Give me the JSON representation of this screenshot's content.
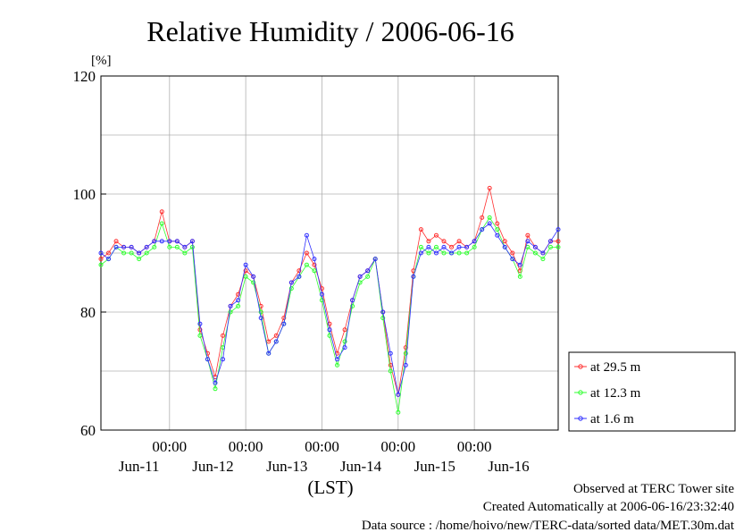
{
  "chart_data": {
    "type": "line",
    "title": "Relative Humidity / 2006-06-16",
    "ylabel": "[%]",
    "xlabel": "(LST)",
    "ylim": [
      60,
      120
    ],
    "yticks": [
      "60",
      "80",
      "100",
      "120"
    ],
    "grid": true,
    "legend": "right",
    "time_ticks": [
      "00:00",
      "00:00",
      "00:00",
      "00:00",
      "00:00"
    ],
    "day_labels": [
      "Jun-11",
      "Jun-12",
      "Jun-13",
      "Jun-14",
      "Jun-15",
      "Jun-16"
    ],
    "x_range_days": [
      0,
      6
    ],
    "series": [
      {
        "name": "at 29.5 m",
        "color": "#ff3030",
        "x": [
          0.0,
          0.1,
          0.2,
          0.3,
          0.4,
          0.5,
          0.6,
          0.7,
          0.8,
          0.9,
          1.0,
          1.1,
          1.2,
          1.3,
          1.4,
          1.5,
          1.6,
          1.7,
          1.8,
          1.9,
          2.0,
          2.1,
          2.2,
          2.3,
          2.4,
          2.5,
          2.6,
          2.7,
          2.8,
          2.9,
          3.0,
          3.1,
          3.2,
          3.3,
          3.4,
          3.5,
          3.6,
          3.7,
          3.8,
          3.9,
          4.0,
          4.1,
          4.2,
          4.3,
          4.4,
          4.5,
          4.6,
          4.7,
          4.8,
          4.9,
          5.0,
          5.1,
          5.2,
          5.3,
          5.4,
          5.5,
          5.6,
          5.7,
          5.8,
          5.9,
          6.0
        ],
        "values": [
          89,
          90,
          92,
          91,
          91,
          90,
          91,
          92,
          97,
          92,
          92,
          91,
          92,
          77,
          73,
          69,
          76,
          81,
          83,
          87,
          86,
          81,
          75,
          76,
          79,
          85,
          87,
          90,
          88,
          84,
          78,
          73,
          77,
          82,
          86,
          87,
          89,
          80,
          71,
          66,
          74,
          87,
          94,
          92,
          93,
          92,
          91,
          92,
          91,
          92,
          96,
          101,
          95,
          92,
          90,
          87,
          93,
          91,
          90,
          92,
          92
        ]
      },
      {
        "name": "at 12.3 m",
        "color": "#30ff30",
        "x": [
          0.0,
          0.1,
          0.2,
          0.3,
          0.4,
          0.5,
          0.6,
          0.7,
          0.8,
          0.9,
          1.0,
          1.1,
          1.2,
          1.3,
          1.4,
          1.5,
          1.6,
          1.7,
          1.8,
          1.9,
          2.0,
          2.1,
          2.2,
          2.3,
          2.4,
          2.5,
          2.6,
          2.7,
          2.8,
          2.9,
          3.0,
          3.1,
          3.2,
          3.3,
          3.4,
          3.5,
          3.6,
          3.7,
          3.8,
          3.9,
          4.0,
          4.1,
          4.2,
          4.3,
          4.4,
          4.5,
          4.6,
          4.7,
          4.8,
          4.9,
          5.0,
          5.1,
          5.2,
          5.3,
          5.4,
          5.5,
          5.6,
          5.7,
          5.8,
          5.9,
          6.0
        ],
        "values": [
          88,
          89,
          91,
          90,
          90,
          89,
          90,
          91,
          95,
          91,
          91,
          90,
          91,
          76,
          72,
          67,
          74,
          80,
          81,
          86,
          85,
          80,
          73,
          75,
          78,
          84,
          86,
          88,
          87,
          82,
          76,
          71,
          75,
          81,
          85,
          86,
          89,
          79,
          70,
          63,
          73,
          86,
          91,
          90,
          91,
          90,
          90,
          90,
          90,
          91,
          94,
          96,
          94,
          91,
          89,
          86,
          91,
          90,
          89,
          91,
          91
        ]
      },
      {
        "name": "at 1.6 m",
        "color": "#3030ff",
        "x": [
          0.0,
          0.1,
          0.2,
          0.3,
          0.4,
          0.5,
          0.6,
          0.7,
          0.8,
          0.9,
          1.0,
          1.1,
          1.2,
          1.3,
          1.4,
          1.5,
          1.6,
          1.7,
          1.8,
          1.9,
          2.0,
          2.1,
          2.2,
          2.3,
          2.4,
          2.5,
          2.6,
          2.7,
          2.8,
          2.9,
          3.0,
          3.1,
          3.2,
          3.3,
          3.4,
          3.5,
          3.6,
          3.7,
          3.8,
          3.9,
          4.0,
          4.1,
          4.2,
          4.3,
          4.4,
          4.5,
          4.6,
          4.7,
          4.8,
          4.9,
          5.0,
          5.1,
          5.2,
          5.3,
          5.4,
          5.5,
          5.6,
          5.7,
          5.8,
          5.9,
          6.0
        ],
        "values": [
          90,
          89,
          91,
          91,
          91,
          90,
          91,
          92,
          92,
          92,
          92,
          91,
          92,
          78,
          72,
          68,
          72,
          81,
          82,
          88,
          86,
          79,
          73,
          75,
          78,
          85,
          86,
          93,
          89,
          83,
          77,
          72,
          74,
          82,
          86,
          87,
          89,
          80,
          73,
          66,
          71,
          86,
          90,
          91,
          90,
          91,
          90,
          91,
          91,
          92,
          94,
          95,
          93,
          91,
          89,
          88,
          92,
          91,
          90,
          92,
          94
        ]
      }
    ]
  },
  "footer": {
    "line1": "Observed at TERC Tower site",
    "line2": "Created Automatically at 2006-06-16/23:32:40",
    "line3": "Data source : /home/hoivo/new/TERC-data/sorted  data/MET.30m.dat"
  }
}
